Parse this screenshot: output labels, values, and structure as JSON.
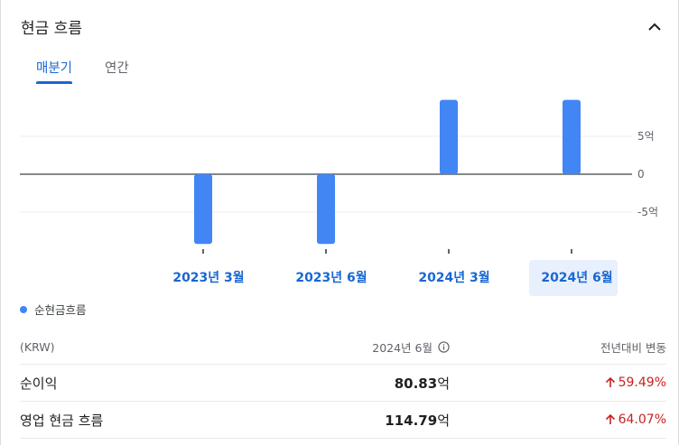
{
  "header": {
    "title": "현금 흐름"
  },
  "tabs": [
    {
      "label": "매분기",
      "active": true
    },
    {
      "label": "연간",
      "active": false
    }
  ],
  "chart_data": {
    "type": "bar",
    "categories": [
      "2023년 3월",
      "2023년 6월",
      "2024년 3월",
      "2024년 6월"
    ],
    "selected_category": "2024년 6월",
    "series": [
      {
        "name": "순현금흐름",
        "color": "#4285f4",
        "values": [
          -9.2,
          -9.2,
          9.8,
          9.8
        ]
      }
    ],
    "y_ticks": [
      {
        "value": 5,
        "label": "5억"
      },
      {
        "value": 0,
        "label": "0"
      },
      {
        "value": -5,
        "label": "-5억"
      }
    ],
    "ylim": [
      -10,
      10
    ]
  },
  "legend": {
    "label": "순현금흐름",
    "color": "#4285f4"
  },
  "table": {
    "headers": {
      "unit": "(KRW)",
      "period": "2024년 6월",
      "change": "전년대비 변동"
    },
    "rows": [
      {
        "label": "순이익",
        "value": "80.83",
        "unit": "억",
        "change": "59.49%",
        "direction": "up"
      },
      {
        "label": "영업 현금 흐름",
        "value": "114.79",
        "unit": "억",
        "change": "64.07%",
        "direction": "up"
      }
    ]
  },
  "icons": {
    "collapse": "chevron-up-icon",
    "info": "info-icon",
    "trend": "arrow-up-icon"
  }
}
